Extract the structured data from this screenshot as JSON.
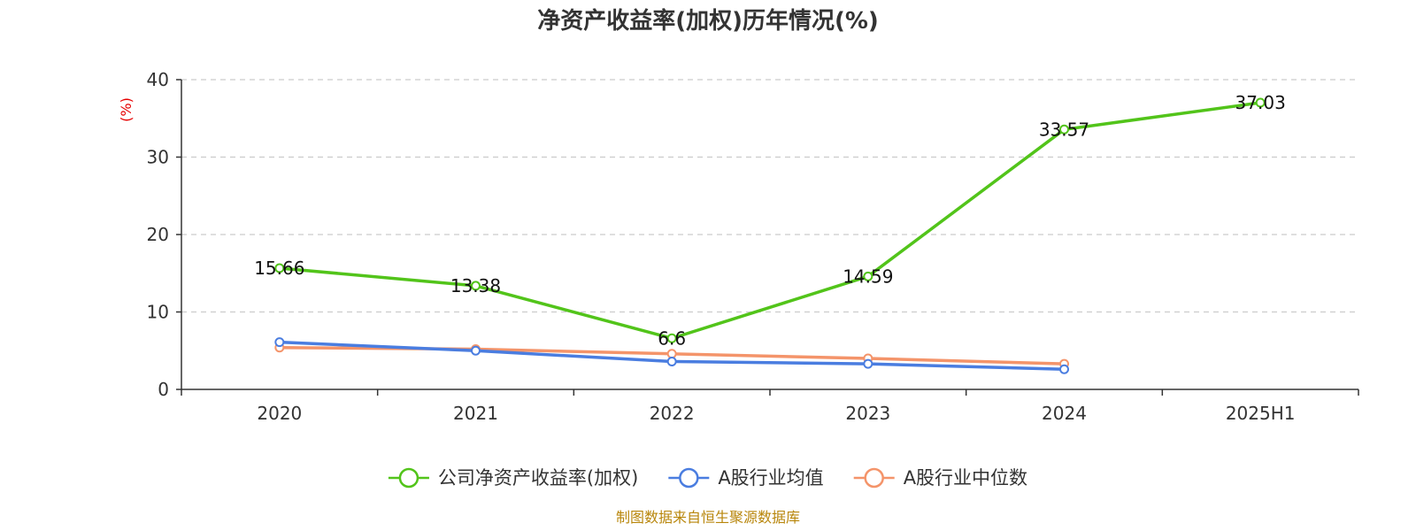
{
  "chart_data": {
    "type": "line",
    "title": "净资产收益率(加权)历年情况(%)",
    "ylabel": "(%)",
    "xlabel": "",
    "ylim": [
      0,
      40
    ],
    "yticks": [
      0,
      10,
      20,
      30,
      40
    ],
    "categories": [
      "2020",
      "2021",
      "2022",
      "2023",
      "2024",
      "2025H1"
    ],
    "grid": true,
    "legend_position": "bottom",
    "series": [
      {
        "name": "公司净资产收益率(加权)",
        "color": "#52c41a",
        "values": [
          15.66,
          13.38,
          6.6,
          14.59,
          33.57,
          37.03
        ],
        "labels": [
          "15.66",
          "13.38",
          "6.6",
          "14.59",
          "33.57",
          "37.03"
        ]
      },
      {
        "name": "A股行业均值",
        "color": "#4a7de0",
        "values": [
          6.1,
          5.0,
          3.6,
          3.3,
          2.6,
          null
        ]
      },
      {
        "name": "A股行业中位数",
        "color": "#f4946a",
        "values": [
          5.4,
          5.2,
          4.6,
          4.0,
          3.3,
          null
        ]
      }
    ]
  },
  "source": "制图数据来自恒生聚源数据库"
}
